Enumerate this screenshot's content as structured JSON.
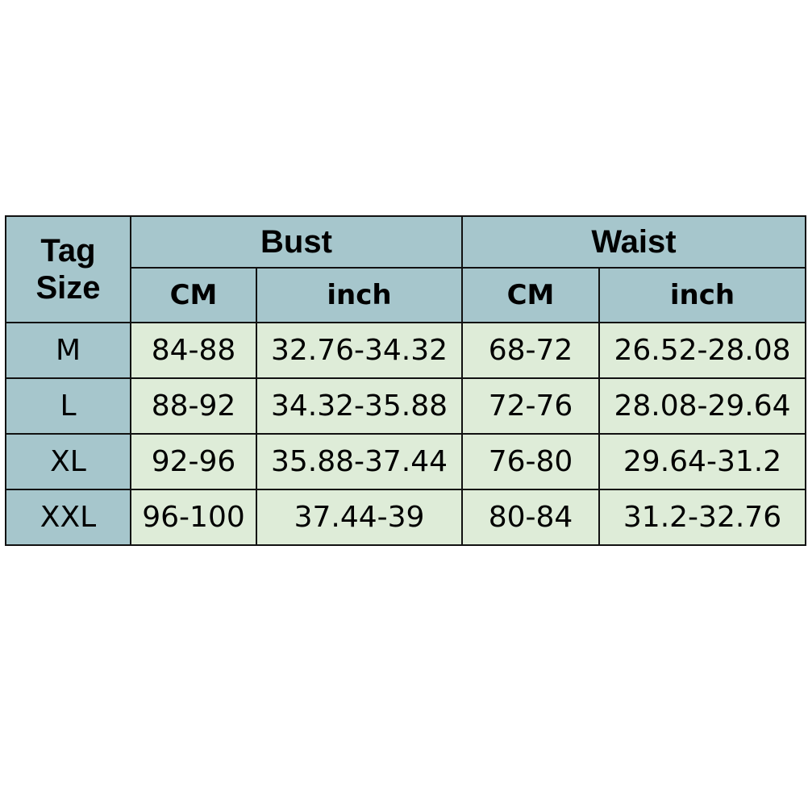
{
  "header": {
    "tag_size": "Tag\nSize",
    "tag": "Tag",
    "size": "Size",
    "bust": "Bust",
    "waist": "Waist",
    "cm": "CM",
    "inch": "inch"
  },
  "rows": [
    {
      "size": "M",
      "bust_cm": "84-88",
      "bust_inch": "32.76-34.32",
      "waist_cm": "68-72",
      "waist_inch": "26.52-28.08"
    },
    {
      "size": "L",
      "bust_cm": "88-92",
      "bust_inch": "34.32-35.88",
      "waist_cm": "72-76",
      "waist_inch": "28.08-29.64"
    },
    {
      "size": "XL",
      "bust_cm": "92-96",
      "bust_inch": "35.88-37.44",
      "waist_cm": "76-80",
      "waist_inch": "29.64-31.2"
    },
    {
      "size": "XXL",
      "bust_cm": "96-100",
      "bust_inch": "37.44-39",
      "waist_cm": "80-84",
      "waist_inch": "31.2-32.76"
    }
  ],
  "colors": {
    "header_bg": "#a6c6cc",
    "cell_bg": "#deecd8",
    "border": "#111111"
  }
}
